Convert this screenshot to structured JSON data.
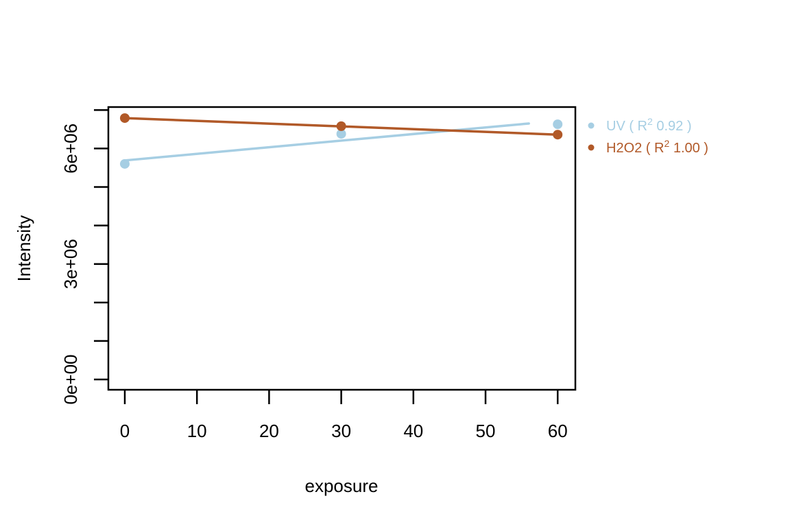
{
  "chart_data": {
    "type": "scatter",
    "title": "",
    "xlabel": "exposure",
    "ylabel": "Intensity",
    "xlim": [
      -2.28,
      62.45
    ],
    "ylim": [
      -267000,
      7077000
    ],
    "grid": false,
    "legend_position": "right-outside-top",
    "x_axis": {
      "ticks": [
        {
          "v": 0,
          "label": "0"
        },
        {
          "v": 10,
          "label": "10"
        },
        {
          "v": 20,
          "label": "20"
        },
        {
          "v": 30,
          "label": "30"
        },
        {
          "v": 40,
          "label": "40"
        },
        {
          "v": 50,
          "label": "50"
        },
        {
          "v": 60,
          "label": "60"
        }
      ]
    },
    "y_axis": {
      "tick_values": [
        0,
        1000000,
        2000000,
        3000000,
        4000000,
        5000000,
        6000000,
        7000000
      ],
      "labeled_ticks": [
        {
          "v": 0,
          "label": "0e+00"
        },
        {
          "v": 3000000,
          "label": "3e+06"
        },
        {
          "v": 6000000,
          "label": "6e+06"
        }
      ]
    },
    "series": [
      {
        "name": "UV",
        "color": "#A6CEE3",
        "r_squared": 0.92,
        "x": [
          0,
          30,
          60
        ],
        "y": [
          5600000,
          6380000,
          6630000
        ],
        "fit_line": {
          "x1": 0,
          "y1": 5690000,
          "x2": 56,
          "y2": 6650000
        }
      },
      {
        "name": "H2O2",
        "color": "#B15928",
        "r_squared": 1.0,
        "x": [
          0,
          30,
          60
        ],
        "y": [
          6790000,
          6580000,
          6360000
        ],
        "fit_line": {
          "x1": 0,
          "y1": 6790000,
          "x2": 60,
          "y2": 6360000
        }
      }
    ],
    "legend": {
      "items": [
        {
          "series": "UV",
          "pre": "UV ( R",
          "sup": "2",
          "post": " 0.92 )",
          "color": "#A6CEE3"
        },
        {
          "series": "H2O2",
          "pre": "H2O2 ( R",
          "sup": "2",
          "post": " 1.00 )",
          "color": "#B15928"
        }
      ]
    },
    "axis_color": "#000000",
    "background_color": "#ffffff"
  }
}
